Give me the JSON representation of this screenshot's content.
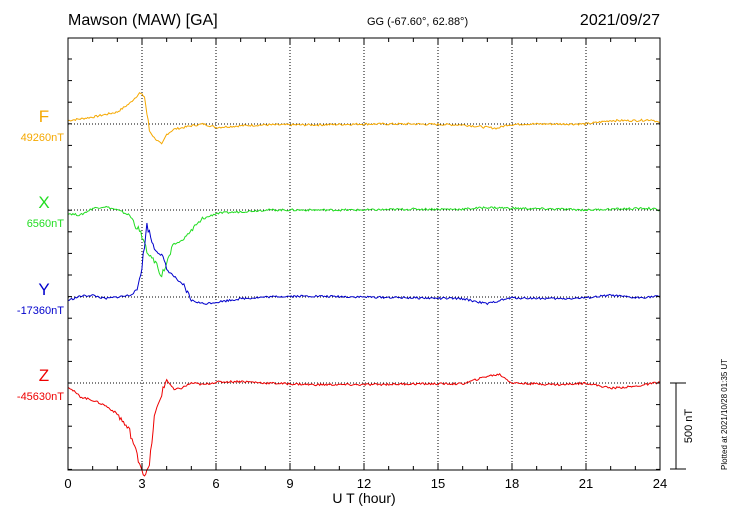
{
  "header": {
    "station": "Mawson (MAW)  [GA]",
    "coords": "GG (-67.60°,  62.88°)",
    "date": "2021/09/27"
  },
  "plotted_note": "Plotted at 2021/10/28 01:35 UT",
  "scale_bar_label": "500 nT",
  "colors": {
    "F": "#f5a800",
    "X": "#22dd22",
    "Y": "#0000cc",
    "Z": "#ee0000"
  },
  "chart_data": {
    "type": "line",
    "title": "Mawson (MAW)  [GA]",
    "xlabel": "U T (hour)",
    "xlim": [
      0,
      24
    ],
    "x_ticks": [
      "0",
      "3",
      "6",
      "9",
      "12",
      "15",
      "18",
      "21",
      "24"
    ],
    "grid": true,
    "scale_bar_nT": 500,
    "series": [
      {
        "name": "F",
        "baseline_label": "49260nT",
        "points": [
          [
            0,
            20
          ],
          [
            0.5,
            30
          ],
          [
            1,
            40
          ],
          [
            1.5,
            55
          ],
          [
            2,
            70
          ],
          [
            2.5,
            120
          ],
          [
            2.9,
            180
          ],
          [
            3.1,
            160
          ],
          [
            3.3,
            -40
          ],
          [
            3.5,
            -80
          ],
          [
            3.8,
            -120
          ],
          [
            4,
            -60
          ],
          [
            4.3,
            -30
          ],
          [
            4.7,
            -20
          ],
          [
            5,
            -10
          ],
          [
            5.5,
            0
          ],
          [
            6,
            -20
          ],
          [
            7,
            -10
          ],
          [
            8,
            -5
          ],
          [
            9,
            -5
          ],
          [
            10,
            -5
          ],
          [
            12,
            0
          ],
          [
            14,
            0
          ],
          [
            16,
            -5
          ],
          [
            17,
            -20
          ],
          [
            17.4,
            -25
          ],
          [
            17.8,
            -5
          ],
          [
            18.5,
            0
          ],
          [
            20,
            0
          ],
          [
            21,
            0
          ],
          [
            22,
            20
          ],
          [
            23,
            20
          ],
          [
            23.7,
            25
          ],
          [
            24,
            5
          ]
        ]
      },
      {
        "name": "X",
        "baseline_label": "6560nT",
        "points": [
          [
            0,
            -20
          ],
          [
            0.5,
            -30
          ],
          [
            1,
            10
          ],
          [
            1.5,
            20
          ],
          [
            2,
            0
          ],
          [
            2.5,
            -30
          ],
          [
            3,
            -150
          ],
          [
            3.2,
            -250
          ],
          [
            3.5,
            -290
          ],
          [
            3.8,
            -380
          ],
          [
            4,
            -310
          ],
          [
            4.3,
            -200
          ],
          [
            4.6,
            -180
          ],
          [
            5,
            -120
          ],
          [
            5.5,
            -50
          ],
          [
            6,
            -20
          ],
          [
            7,
            -10
          ],
          [
            8,
            0
          ],
          [
            10,
            0
          ],
          [
            12,
            0
          ],
          [
            14,
            5
          ],
          [
            16,
            5
          ],
          [
            17,
            15
          ],
          [
            18,
            10
          ],
          [
            20,
            5
          ],
          [
            21,
            0
          ],
          [
            22,
            5
          ],
          [
            23.5,
            10
          ],
          [
            24,
            0
          ]
        ]
      },
      {
        "name": "Y",
        "baseline_label": "-17360nT",
        "points": [
          [
            0,
            -20
          ],
          [
            0.5,
            5
          ],
          [
            1,
            10
          ],
          [
            1.5,
            -10
          ],
          [
            2,
            0
          ],
          [
            2.5,
            10
          ],
          [
            2.8,
            40
          ],
          [
            3,
            180
          ],
          [
            3.2,
            420
          ],
          [
            3.5,
            280
          ],
          [
            3.8,
            240
          ],
          [
            4,
            160
          ],
          [
            4.3,
            120
          ],
          [
            4.7,
            60
          ],
          [
            5,
            -20
          ],
          [
            5.5,
            -40
          ],
          [
            6,
            -30
          ],
          [
            7,
            -10
          ],
          [
            8,
            0
          ],
          [
            9,
            5
          ],
          [
            10,
            5
          ],
          [
            12,
            0
          ],
          [
            14,
            -5
          ],
          [
            16,
            -10
          ],
          [
            17,
            -40
          ],
          [
            17.5,
            -20
          ],
          [
            18,
            -5
          ],
          [
            20,
            -10
          ],
          [
            21,
            -5
          ],
          [
            22,
            10
          ],
          [
            23,
            -5
          ],
          [
            24,
            5
          ]
        ]
      },
      {
        "name": "Z",
        "baseline_label": "-45630nT",
        "points": [
          [
            0,
            -20
          ],
          [
            0.5,
            -80
          ],
          [
            1,
            -100
          ],
          [
            1.5,
            -130
          ],
          [
            2,
            -180
          ],
          [
            2.5,
            -280
          ],
          [
            2.8,
            -420
          ],
          [
            3.1,
            -540
          ],
          [
            3.3,
            -480
          ],
          [
            3.5,
            -200
          ],
          [
            3.8,
            -60
          ],
          [
            4,
            20
          ],
          [
            4.3,
            -40
          ],
          [
            4.6,
            -30
          ],
          [
            5,
            0
          ],
          [
            5.5,
            -10
          ],
          [
            6,
            5
          ],
          [
            7,
            10
          ],
          [
            8,
            0
          ],
          [
            10,
            -10
          ],
          [
            12,
            -10
          ],
          [
            14,
            -5
          ],
          [
            16,
            -5
          ],
          [
            17,
            40
          ],
          [
            17.5,
            50
          ],
          [
            18,
            0
          ],
          [
            20,
            -10
          ],
          [
            21,
            0
          ],
          [
            22,
            -30
          ],
          [
            23,
            -20
          ],
          [
            24,
            5
          ]
        ]
      }
    ]
  }
}
